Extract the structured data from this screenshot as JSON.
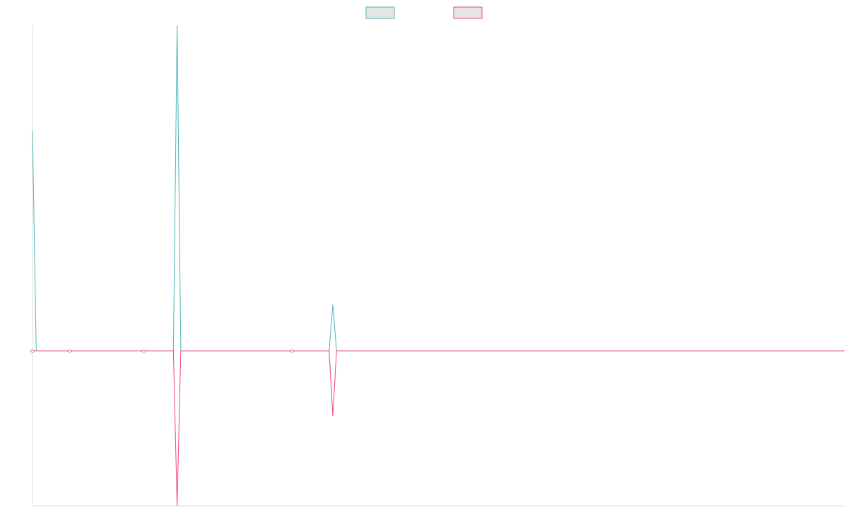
{
  "chart_data": {
    "type": "line",
    "title": "",
    "xlabel": "",
    "ylabel": "",
    "x_count": 220,
    "xlim": [
      0,
      219
    ],
    "ylim": [
      -1.0,
      2.1
    ],
    "grid": false,
    "legend": "top-center",
    "series": [
      {
        "color": "#4bb5b7",
        "fill": "#e6e6e6",
        "points": [
          [
            0,
            1.42
          ],
          [
            1,
            0.0
          ],
          [
            10,
            0.0
          ],
          [
            38,
            0.0
          ],
          [
            39,
            2.1
          ],
          [
            40,
            0.0
          ],
          [
            80,
            0.0
          ],
          [
            81,
            0.3
          ],
          [
            82,
            0.0
          ],
          [
            219,
            0.0
          ]
        ]
      },
      {
        "color": "#f0457a",
        "fill": "#e6e6e6",
        "points": [
          [
            0,
            0.0
          ],
          [
            1,
            0.0
          ],
          [
            38,
            0.0
          ],
          [
            39,
            -1.0
          ],
          [
            40,
            0.0
          ],
          [
            80,
            0.0
          ],
          [
            81,
            -0.42
          ],
          [
            82,
            0.0
          ],
          [
            219,
            0.0
          ]
        ]
      }
    ],
    "markers": [
      {
        "x": 0,
        "y": 0.0,
        "color": "#f0457a"
      },
      {
        "x": 10,
        "y": 0.0,
        "color": "#f0457a"
      },
      {
        "x": 30,
        "y": 0.0,
        "color": "#f0457a"
      },
      {
        "x": 70,
        "y": 0.0,
        "color": "#f0457a"
      }
    ]
  }
}
